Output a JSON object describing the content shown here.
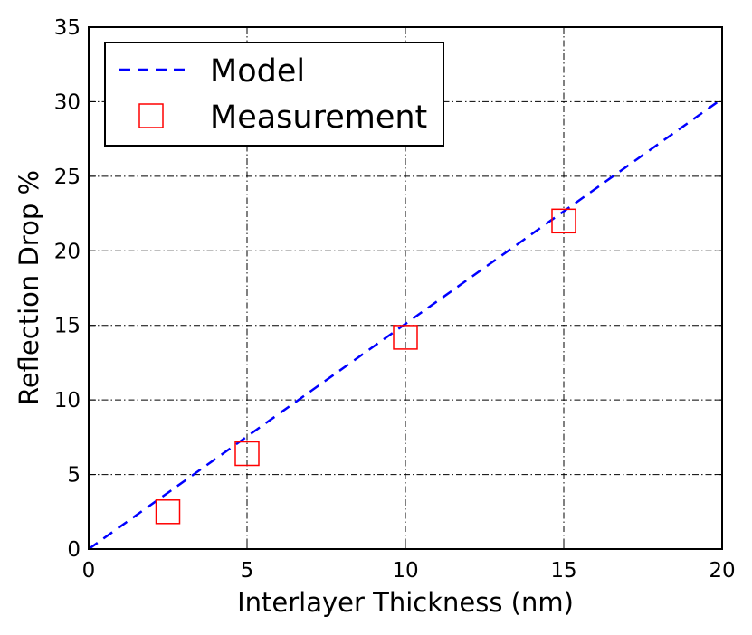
{
  "chart_data": {
    "type": "scatter",
    "title": "",
    "xlabel": "Interlayer Thickness (nm)",
    "ylabel": "Reflection Drop %",
    "xlim": [
      0,
      20
    ],
    "ylim": [
      0,
      35
    ],
    "xticks": [
      0,
      5,
      10,
      15,
      20
    ],
    "yticks": [
      0,
      5,
      10,
      15,
      20,
      25,
      30,
      35
    ],
    "grid": true,
    "legend_position": "top-left",
    "series": [
      {
        "name": "Model",
        "style": "dashed-line",
        "color": "#0000ff",
        "x": [
          0,
          20
        ],
        "y": [
          0,
          30.2
        ]
      },
      {
        "name": "Measurement",
        "style": "open-square-marker",
        "color": "#ff0000",
        "x": [
          2.5,
          5,
          10,
          15
        ],
        "y": [
          2.5,
          6.4,
          14.2,
          22.0
        ]
      }
    ]
  }
}
